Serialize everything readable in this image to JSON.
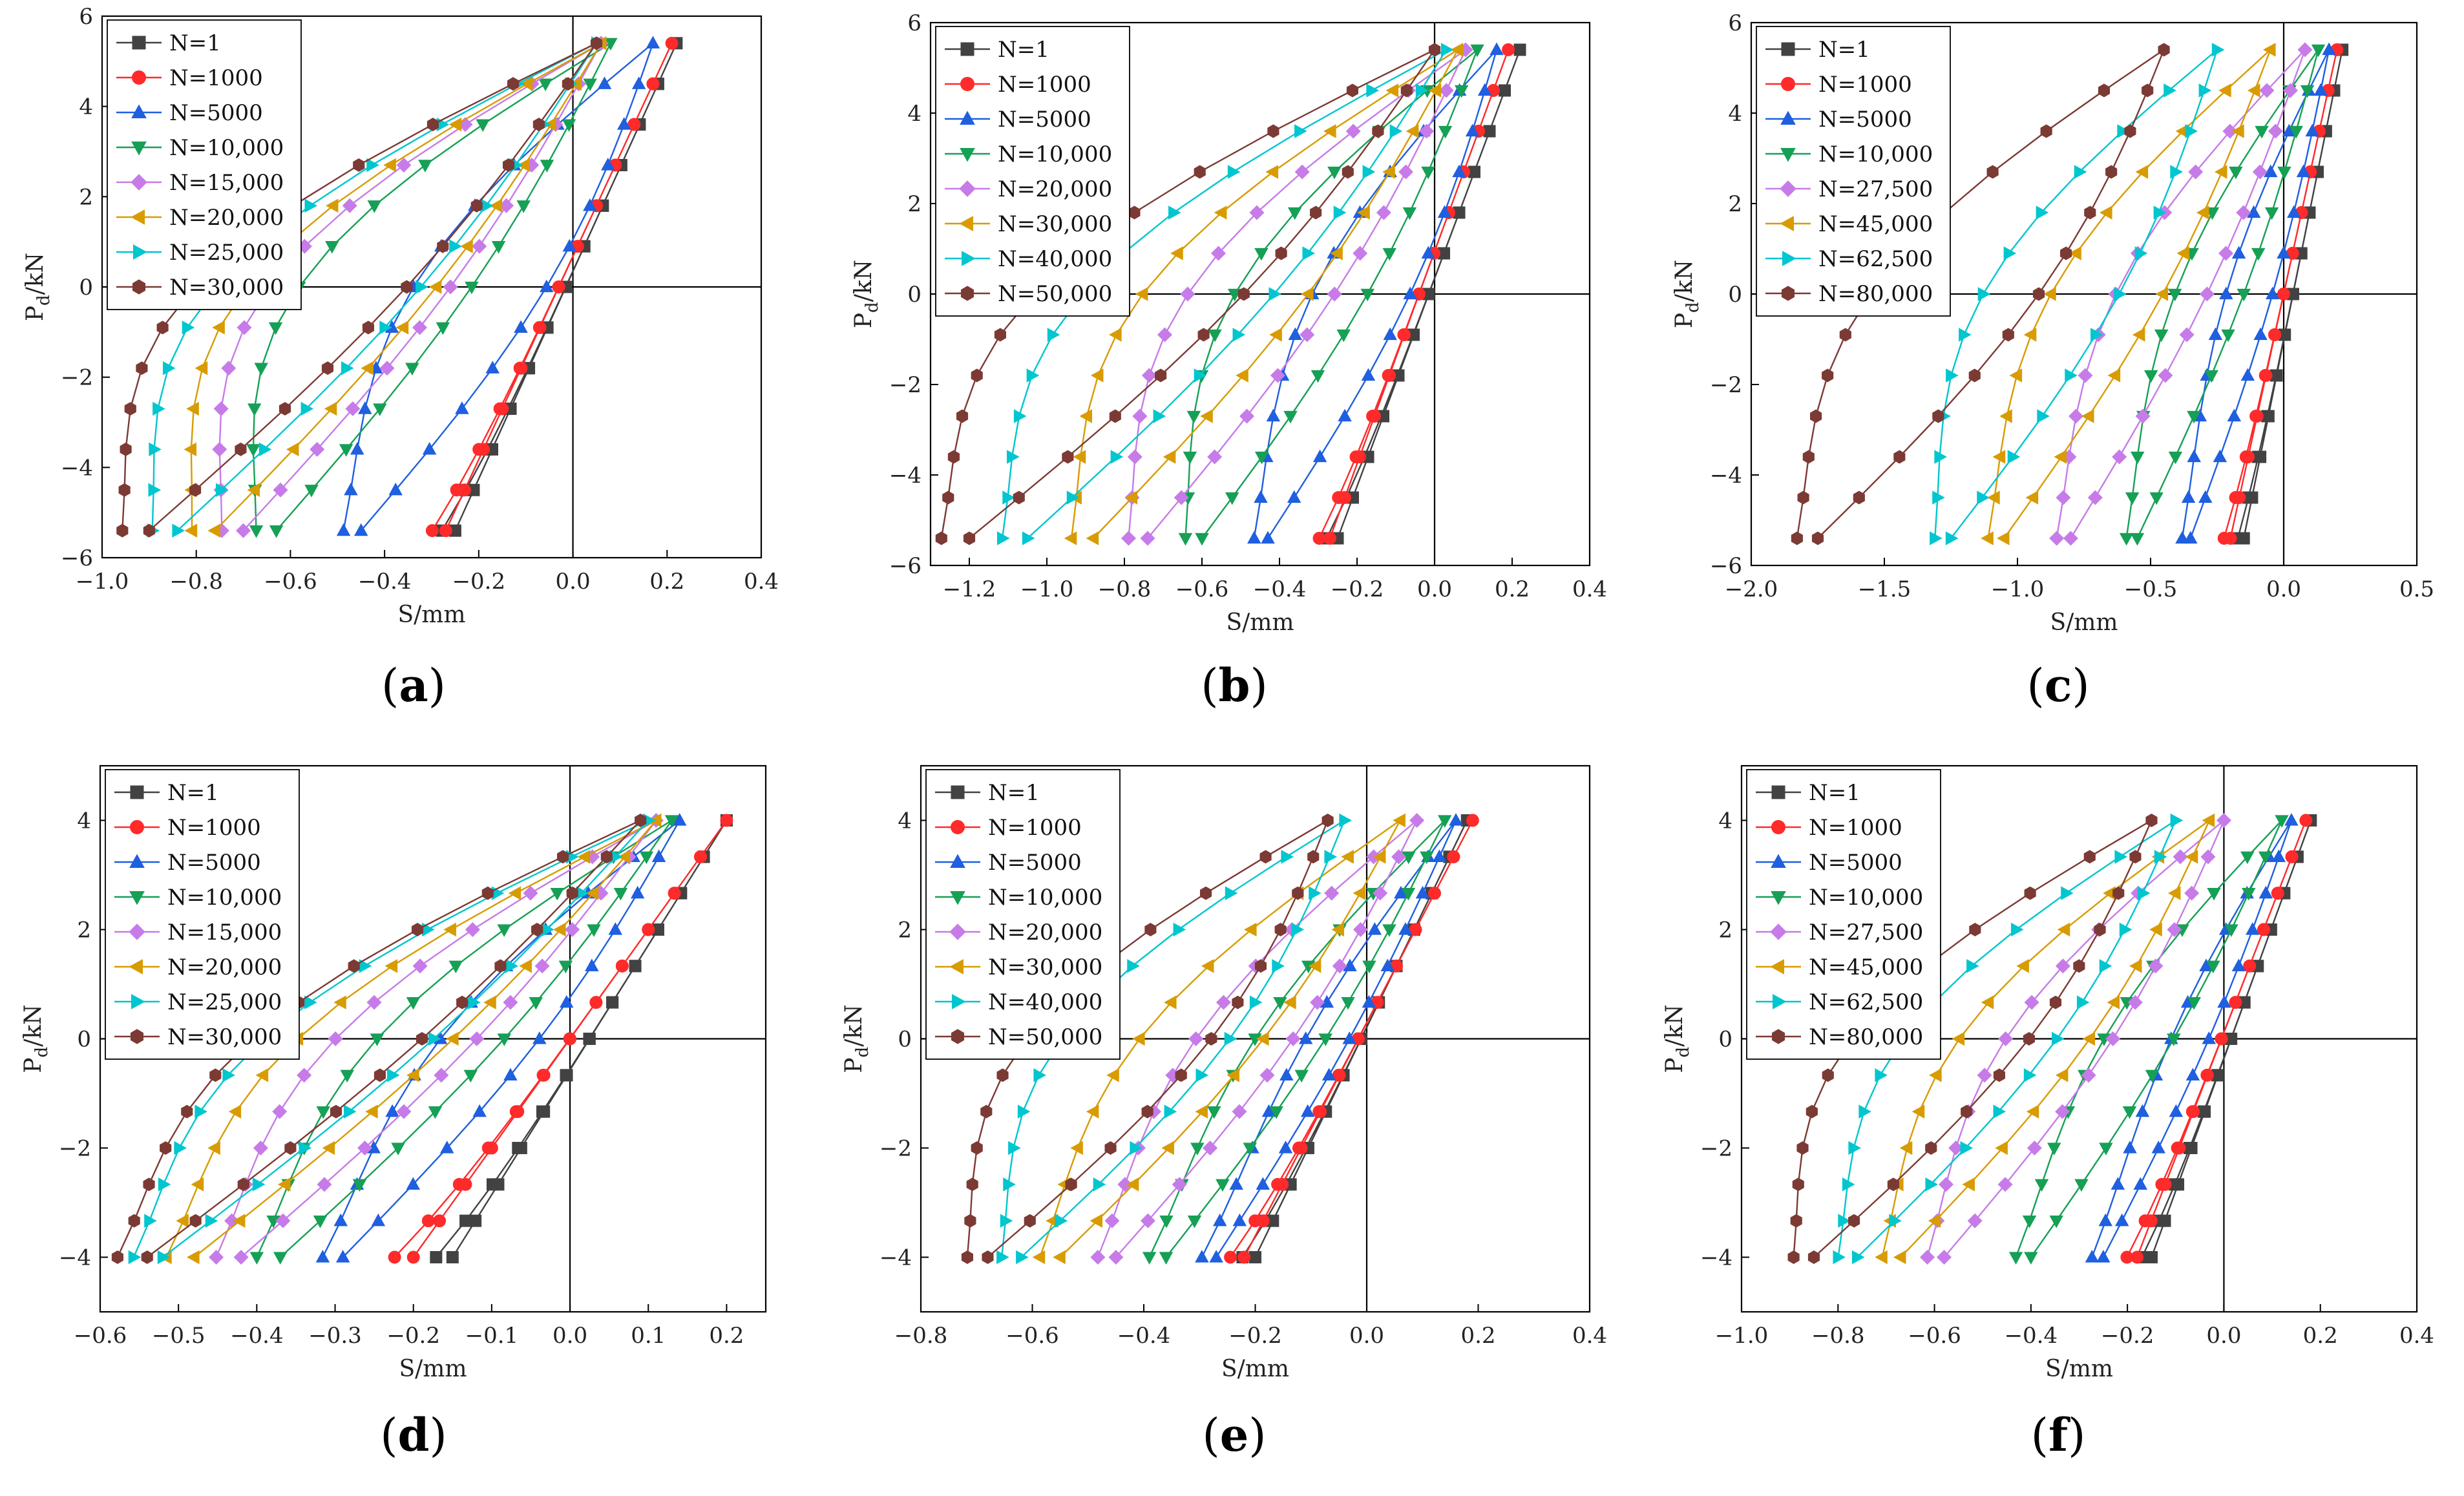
{
  "figure": {
    "captions": [
      "(a)",
      "(b)",
      "(c)",
      "(d)",
      "(e)",
      "(f)"
    ]
  },
  "styles": {
    "series_colors": [
      "#424242",
      "#ff2a2a",
      "#1f5fe0",
      "#16a055",
      "#c77be8",
      "#d89b00",
      "#00c6cf",
      "#7c3a34"
    ],
    "series_markers": [
      "square",
      "circle",
      "triangle-up",
      "triangle-down",
      "diamond",
      "triangle-left",
      "triangle-right",
      "hexagon"
    ]
  },
  "chart_data": [
    {
      "type": "line",
      "caption": "(a)",
      "xlabel": "S/mm",
      "ylabel": "P",
      "ylabel_sub": "d",
      "ylabel_unit": "/kN",
      "xlim": [
        -1.0,
        0.4
      ],
      "ylim": [
        -6,
        6
      ],
      "xticks": [
        -1.0,
        -0.8,
        -0.6,
        -0.4,
        -0.2,
        0.0,
        0.2,
        0.4
      ],
      "xtick_labels": [
        "−1.0",
        "−0.8",
        "−0.6",
        "−0.4",
        "−0.2",
        "0.0",
        "0.2",
        "0.4"
      ],
      "yticks": [
        -6,
        -4,
        -2,
        0,
        2,
        4,
        6
      ],
      "ytick_labels": [
        "−6",
        "−4",
        "−2",
        "0",
        "2",
        "4",
        "6"
      ],
      "series": [
        {
          "name": "N=1",
          "x_min": -0.25,
          "x_max": 0.22,
          "load_shift": 0.0,
          "unload_shift": 0.0
        },
        {
          "name": "N=1000",
          "x_min": -0.27,
          "x_max": 0.21,
          "load_shift": 0.0,
          "unload_shift": 0.0
        },
        {
          "name": "N=5000",
          "x_min": -0.45,
          "x_max": 0.17,
          "load_shift": 0.22,
          "unload_shift": 0.14
        },
        {
          "name": "N=10,000",
          "x_min": -0.63,
          "x_max": 0.08,
          "load_shift": 0.34,
          "unload_shift": 0.1
        },
        {
          "name": "N=15,000",
          "x_min": -0.7,
          "x_max": 0.06,
          "load_shift": 0.36,
          "unload_shift": 0.1
        },
        {
          "name": "N=20,000",
          "x_min": -0.76,
          "x_max": 0.06,
          "load_shift": 0.38,
          "unload_shift": 0.1
        },
        {
          "name": "N=25,000",
          "x_min": -0.84,
          "x_max": 0.05,
          "load_shift": 0.4,
          "unload_shift": 0.12
        },
        {
          "name": "N=30,000",
          "x_min": -0.9,
          "x_max": 0.05,
          "load_shift": 0.42,
          "unload_shift": 0.12
        }
      ]
    },
    {
      "type": "line",
      "caption": "(b)",
      "xlabel": "S/mm",
      "ylabel": "P",
      "ylabel_sub": "d",
      "ylabel_unit": "/kN",
      "xlim": [
        -1.3,
        0.4
      ],
      "ylim": [
        -6,
        6
      ],
      "xticks": [
        -1.2,
        -1.0,
        -0.8,
        -0.6,
        -0.4,
        -0.2,
        0.0,
        0.2,
        0.4
      ],
      "xtick_labels": [
        "−1.2",
        "−1.0",
        "−0.8",
        "−0.6",
        "−0.4",
        "−0.2",
        "0.0",
        "0.2",
        "0.4"
      ],
      "yticks": [
        -6,
        -4,
        -2,
        0,
        2,
        4,
        6
      ],
      "ytick_labels": [
        "−6",
        "−4",
        "−2",
        "0",
        "2",
        "4",
        "6"
      ],
      "series": [
        {
          "name": "N=1",
          "x_min": -0.25,
          "x_max": 0.22,
          "load_shift": 0.0,
          "unload_shift": 0.0
        },
        {
          "name": "N=1000",
          "x_min": -0.27,
          "x_max": 0.19,
          "load_shift": 0.0,
          "unload_shift": 0.0
        },
        {
          "name": "N=5000",
          "x_min": -0.43,
          "x_max": 0.16,
          "load_shift": 0.2,
          "unload_shift": 0.12
        },
        {
          "name": "N=10,000",
          "x_min": -0.6,
          "x_max": 0.11,
          "load_shift": 0.3,
          "unload_shift": 0.12
        },
        {
          "name": "N=20,000",
          "x_min": -0.74,
          "x_max": 0.08,
          "load_shift": 0.34,
          "unload_shift": 0.12
        },
        {
          "name": "N=30,000",
          "x_min": -0.88,
          "x_max": 0.06,
          "load_shift": 0.38,
          "unload_shift": 0.14
        },
        {
          "name": "N=40,000",
          "x_min": -1.05,
          "x_max": 0.03,
          "load_shift": 0.44,
          "unload_shift": 0.16
        },
        {
          "name": "N=50,000",
          "x_min": -1.2,
          "x_max": 0.0,
          "load_shift": 0.48,
          "unload_shift": 0.18
        }
      ]
    },
    {
      "type": "line",
      "caption": "(c)",
      "xlabel": "S/mm",
      "ylabel": "P",
      "ylabel_sub": "d",
      "ylabel_unit": "/kN",
      "xlim": [
        -2.0,
        0.5
      ],
      "ylim": [
        -6,
        6
      ],
      "xticks": [
        -2.0,
        -1.5,
        -1.0,
        -0.5,
        0.0,
        0.5
      ],
      "xtick_labels": [
        "−2.0",
        "−1.5",
        "−1.0",
        "−0.5",
        "0.0",
        "0.5"
      ],
      "yticks": [
        -6,
        -4,
        -2,
        0,
        2,
        4,
        6
      ],
      "ytick_labels": [
        "−6",
        "−4",
        "−2",
        "0",
        "2",
        "4",
        "6"
      ],
      "series": [
        {
          "name": "N=1",
          "x_min": -0.15,
          "x_max": 0.22,
          "load_shift": 0.0,
          "unload_shift": 0.0
        },
        {
          "name": "N=1000",
          "x_min": -0.2,
          "x_max": 0.2,
          "load_shift": 0.0,
          "unload_shift": 0.0
        },
        {
          "name": "N=5000",
          "x_min": -0.35,
          "x_max": 0.17,
          "load_shift": 0.14,
          "unload_shift": 0.08
        },
        {
          "name": "N=10,000",
          "x_min": -0.55,
          "x_max": 0.13,
          "load_shift": 0.22,
          "unload_shift": 0.1
        },
        {
          "name": "N=27,500",
          "x_min": -0.8,
          "x_max": 0.08,
          "load_shift": 0.3,
          "unload_shift": 0.12
        },
        {
          "name": "N=45,000",
          "x_min": -1.05,
          "x_max": -0.05,
          "load_shift": 0.36,
          "unload_shift": 0.16
        },
        {
          "name": "N=62,500",
          "x_min": -1.25,
          "x_max": -0.25,
          "load_shift": 0.42,
          "unload_shift": 0.22
        },
        {
          "name": "N=80,000",
          "x_min": -1.75,
          "x_max": -0.45,
          "load_shift": 0.5,
          "unload_shift": 0.3
        }
      ]
    },
    {
      "type": "line",
      "caption": "(d)",
      "xlabel": "S/mm",
      "ylabel": "P",
      "ylabel_sub": "d",
      "ylabel_unit": "/kN",
      "xlim": [
        -0.6,
        0.25
      ],
      "ylim": [
        -5,
        5
      ],
      "xticks": [
        -0.6,
        -0.5,
        -0.4,
        -0.3,
        -0.2,
        -0.1,
        0.0,
        0.1,
        0.2
      ],
      "xtick_labels": [
        "−0.6",
        "−0.5",
        "−0.4",
        "−0.3",
        "−0.2",
        "−0.1",
        "0.0",
        "0.1",
        "0.2"
      ],
      "yticks": [
        -4,
        -2,
        0,
        2,
        4
      ],
      "ytick_labels": [
        "−4",
        "−2",
        "0",
        "2",
        "4"
      ],
      "series": [
        {
          "name": "N=1",
          "x_min": -0.15,
          "x_max": 0.2,
          "load_shift": 0.0,
          "unload_shift": 0.0
        },
        {
          "name": "N=1000",
          "x_min": -0.2,
          "x_max": 0.2,
          "load_shift": 0.0,
          "unload_shift": 0.0
        },
        {
          "name": "N=5000",
          "x_min": -0.29,
          "x_max": 0.14,
          "load_shift": 0.1,
          "unload_shift": 0.06
        },
        {
          "name": "N=10,000",
          "x_min": -0.37,
          "x_max": 0.13,
          "load_shift": 0.14,
          "unload_shift": 0.06
        },
        {
          "name": "N=15,000",
          "x_min": -0.42,
          "x_max": 0.11,
          "load_shift": 0.16,
          "unload_shift": 0.06
        },
        {
          "name": "N=20,000",
          "x_min": -0.48,
          "x_max": 0.11,
          "load_shift": 0.18,
          "unload_shift": 0.06
        },
        {
          "name": "N=25,000",
          "x_min": -0.52,
          "x_max": 0.1,
          "load_shift": 0.2,
          "unload_shift": 0.06
        },
        {
          "name": "N=30,000",
          "x_min": -0.54,
          "x_max": 0.09,
          "load_shift": 0.2,
          "unload_shift": 0.06
        }
      ]
    },
    {
      "type": "line",
      "caption": "(e)",
      "xlabel": "S/mm",
      "ylabel": "P",
      "ylabel_sub": "d",
      "ylabel_unit": "/kN",
      "xlim": [
        -0.8,
        0.4
      ],
      "ylim": [
        -5,
        5
      ],
      "xticks": [
        -0.8,
        -0.6,
        -0.4,
        -0.2,
        0.0,
        0.2,
        0.4
      ],
      "xtick_labels": [
        "−0.8",
        "−0.6",
        "−0.4",
        "−0.2",
        "0.0",
        "0.2",
        "0.4"
      ],
      "yticks": [
        -4,
        -2,
        0,
        2,
        4
      ],
      "ytick_labels": [
        "−4",
        "−2",
        "0",
        "2",
        "4"
      ],
      "series": [
        {
          "name": "N=1",
          "x_min": -0.2,
          "x_max": 0.18,
          "load_shift": 0.0,
          "unload_shift": 0.0
        },
        {
          "name": "N=1000",
          "x_min": -0.22,
          "x_max": 0.19,
          "load_shift": 0.0,
          "unload_shift": 0.0
        },
        {
          "name": "N=5000",
          "x_min": -0.27,
          "x_max": 0.16,
          "load_shift": 0.06,
          "unload_shift": 0.04
        },
        {
          "name": "N=10,000",
          "x_min": -0.36,
          "x_max": 0.14,
          "load_shift": 0.1,
          "unload_shift": 0.06
        },
        {
          "name": "N=20,000",
          "x_min": -0.45,
          "x_max": 0.09,
          "load_shift": 0.14,
          "unload_shift": 0.08
        },
        {
          "name": "N=30,000",
          "x_min": -0.55,
          "x_max": 0.06,
          "load_shift": 0.18,
          "unload_shift": 0.1
        },
        {
          "name": "N=40,000",
          "x_min": -0.62,
          "x_max": -0.04,
          "load_shift": 0.24,
          "unload_shift": 0.14
        },
        {
          "name": "N=50,000",
          "x_min": -0.68,
          "x_max": -0.07,
          "load_shift": 0.26,
          "unload_shift": 0.16
        }
      ]
    },
    {
      "type": "line",
      "caption": "(f)",
      "xlabel": "S/mm",
      "ylabel": "P",
      "ylabel_sub": "d",
      "ylabel_unit": "/kN",
      "xlim": [
        -1.0,
        0.4
      ],
      "ylim": [
        -5,
        5
      ],
      "xticks": [
        -1.0,
        -0.8,
        -0.6,
        -0.4,
        -0.2,
        0.0,
        0.2,
        0.4
      ],
      "xtick_labels": [
        "−1.0",
        "−0.8",
        "−0.6",
        "−0.4",
        "−0.2",
        "0.0",
        "0.2",
        "0.4"
      ],
      "yticks": [
        -4,
        -2,
        0,
        2,
        4
      ],
      "ytick_labels": [
        "−4",
        "−2",
        "0",
        "2",
        "4"
      ],
      "series": [
        {
          "name": "N=1",
          "x_min": -0.15,
          "x_max": 0.18,
          "load_shift": 0.0,
          "unload_shift": 0.0
        },
        {
          "name": "N=1000",
          "x_min": -0.18,
          "x_max": 0.17,
          "load_shift": 0.0,
          "unload_shift": 0.0
        },
        {
          "name": "N=5000",
          "x_min": -0.25,
          "x_max": 0.14,
          "load_shift": 0.06,
          "unload_shift": 0.04
        },
        {
          "name": "N=10,000",
          "x_min": -0.4,
          "x_max": 0.12,
          "load_shift": 0.12,
          "unload_shift": 0.06
        },
        {
          "name": "N=27,500",
          "x_min": -0.58,
          "x_max": 0.0,
          "load_shift": 0.18,
          "unload_shift": 0.1
        },
        {
          "name": "N=45,000",
          "x_min": -0.67,
          "x_max": -0.03,
          "load_shift": 0.22,
          "unload_shift": 0.12
        },
        {
          "name": "N=62,500",
          "x_min": -0.76,
          "x_max": -0.1,
          "load_shift": 0.26,
          "unload_shift": 0.14
        },
        {
          "name": "N=80,000",
          "x_min": -0.85,
          "x_max": -0.15,
          "load_shift": 0.3,
          "unload_shift": 0.16
        }
      ]
    }
  ]
}
